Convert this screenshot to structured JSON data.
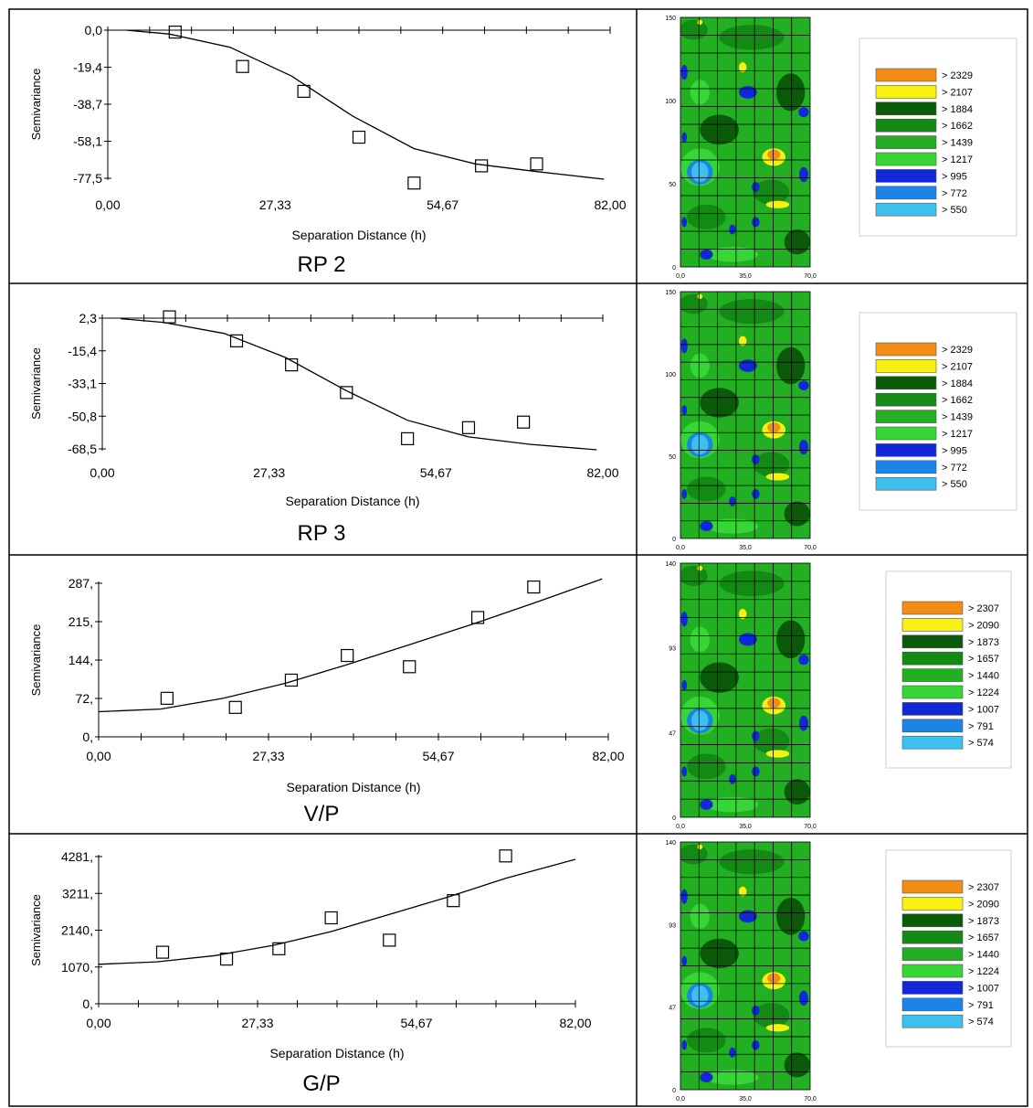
{
  "rows": [
    {
      "caption": "RP 2",
      "variogram": {
        "type": "scatter",
        "xlabel": "Separation Distance (h)",
        "ylabel": "Semivariance",
        "xlim": [
          0,
          82
        ],
        "ylim": [
          -77.5,
          0
        ],
        "x_ticks": [
          "0,00",
          "27,33",
          "54,67",
          "82,00"
        ],
        "y_ticks": [
          "0,0",
          "-19,4",
          "-38,7",
          "-58,1",
          "-77,5"
        ],
        "points": [
          [
            11,
            -1
          ],
          [
            22,
            -19
          ],
          [
            32,
            -32
          ],
          [
            41,
            -56
          ],
          [
            50,
            -80
          ],
          [
            61,
            -71
          ],
          [
            70,
            -70
          ]
        ],
        "model": [
          [
            3,
            0
          ],
          [
            10,
            -2
          ],
          [
            20,
            -9
          ],
          [
            30,
            -24
          ],
          [
            40,
            -45
          ],
          [
            50,
            -62
          ],
          [
            60,
            -70
          ],
          [
            70,
            -74
          ],
          [
            81,
            -78
          ]
        ]
      },
      "map": {
        "y_ticks": [
          "150",
          "100",
          "50",
          "0"
        ],
        "x_ticks": [
          "0,0",
          "35,0",
          "70,0"
        ],
        "legend": [
          {
            "label": "> 2329",
            "color": "#f28c14"
          },
          {
            "label": "> 2107",
            "color": "#f7f012"
          },
          {
            "label": "> 1884",
            "color": "#0a5a0a"
          },
          {
            "label": "> 1662",
            "color": "#138a13"
          },
          {
            "label": "> 1439",
            "color": "#22b022"
          },
          {
            "label": "> 1217",
            "color": "#35d635"
          },
          {
            "label": "> 995",
            "color": "#1028d8"
          },
          {
            "label": "> 772",
            "color": "#1c84e6"
          },
          {
            "label": "> 550",
            "color": "#3cc0ee"
          }
        ]
      }
    },
    {
      "caption": "RP 3",
      "variogram": {
        "type": "scatter",
        "xlabel": "Separation Distance (h)",
        "ylabel": "Semivariance",
        "xlim": [
          0,
          82
        ],
        "ylim": [
          -68.5,
          2.3
        ],
        "x_ticks": [
          "0,00",
          "27,33",
          "54,67",
          "82,00"
        ],
        "y_ticks": [
          "2,3",
          "-15,4",
          "-33,1",
          "-50,8",
          "-68,5"
        ],
        "points": [
          [
            11,
            3
          ],
          [
            22,
            -10
          ],
          [
            31,
            -23
          ],
          [
            40,
            -38
          ],
          [
            50,
            -63
          ],
          [
            60,
            -57
          ],
          [
            69,
            -54
          ]
        ],
        "model": [
          [
            3,
            2
          ],
          [
            10,
            0
          ],
          [
            20,
            -6
          ],
          [
            30,
            -19
          ],
          [
            40,
            -37
          ],
          [
            50,
            -53
          ],
          [
            60,
            -62
          ],
          [
            70,
            -66
          ],
          [
            81,
            -69
          ]
        ]
      },
      "map": {
        "y_ticks": [
          "150",
          "100",
          "50",
          "0"
        ],
        "x_ticks": [
          "0,0",
          "35,0",
          "70,0"
        ],
        "legend": [
          {
            "label": "> 2329",
            "color": "#f28c14"
          },
          {
            "label": "> 2107",
            "color": "#f7f012"
          },
          {
            "label": "> 1884",
            "color": "#0a5a0a"
          },
          {
            "label": "> 1662",
            "color": "#138a13"
          },
          {
            "label": "> 1439",
            "color": "#22b022"
          },
          {
            "label": "> 1217",
            "color": "#35d635"
          },
          {
            "label": "> 995",
            "color": "#1028d8"
          },
          {
            "label": "> 772",
            "color": "#1c84e6"
          },
          {
            "label": "> 550",
            "color": "#3cc0ee"
          }
        ]
      }
    },
    {
      "caption": "V/P",
      "variogram": {
        "type": "scatter",
        "xlabel": "Separation Distance (h)",
        "ylabel": "Semivariance",
        "xlim": [
          0,
          82
        ],
        "ylim": [
          0,
          287
        ],
        "x_ticks": [
          "0,00",
          "27,33",
          "54,67",
          "82,00"
        ],
        "y_ticks": [
          "287,",
          "215,",
          "144,",
          "72,",
          "0,"
        ],
        "points": [
          [
            11,
            72
          ],
          [
            22,
            55
          ],
          [
            31,
            106
          ],
          [
            40,
            152
          ],
          [
            50,
            131
          ],
          [
            61,
            223
          ],
          [
            70,
            280
          ]
        ],
        "model": [
          [
            0,
            47
          ],
          [
            10,
            52
          ],
          [
            20,
            72
          ],
          [
            30,
            100
          ],
          [
            40,
            135
          ],
          [
            50,
            172
          ],
          [
            60,
            210
          ],
          [
            70,
            250
          ],
          [
            81,
            295
          ]
        ]
      },
      "map": {
        "y_ticks": [
          "140",
          "93",
          "47",
          "0"
        ],
        "x_ticks": [
          "0,0",
          "35,0",
          "70,0"
        ],
        "legend": [
          {
            "label": "> 2307",
            "color": "#f28c14"
          },
          {
            "label": "> 2090",
            "color": "#f7f012"
          },
          {
            "label": "> 1873",
            "color": "#0a5a0a"
          },
          {
            "label": "> 1657",
            "color": "#138a13"
          },
          {
            "label": "> 1440",
            "color": "#22b022"
          },
          {
            "label": "> 1224",
            "color": "#35d635"
          },
          {
            "label": "> 1007",
            "color": "#1028d8"
          },
          {
            "label": "> 791",
            "color": "#1c84e6"
          },
          {
            "label": "> 574",
            "color": "#3cc0ee"
          }
        ]
      }
    },
    {
      "caption": "G/P",
      "variogram": {
        "type": "scatter",
        "xlabel": "Separation Distance (h)",
        "ylabel": "Semivariance",
        "xlim": [
          0,
          82
        ],
        "ylim": [
          0,
          4281
        ],
        "x_ticks": [
          "0,00",
          "27,33",
          "54,67",
          "82,00"
        ],
        "y_ticks": [
          "4281,",
          "3211,",
          "2140,",
          "1070,",
          "0,"
        ],
        "points": [
          [
            11,
            1500
          ],
          [
            22,
            1300
          ],
          [
            31,
            1600
          ],
          [
            40,
            2500
          ],
          [
            50,
            1850
          ],
          [
            61,
            3000
          ],
          [
            70,
            4300
          ]
        ],
        "model": [
          [
            0,
            1150
          ],
          [
            10,
            1220
          ],
          [
            20,
            1400
          ],
          [
            30,
            1700
          ],
          [
            40,
            2100
          ],
          [
            50,
            2600
          ],
          [
            60,
            3100
          ],
          [
            70,
            3650
          ],
          [
            82,
            4200
          ]
        ]
      },
      "map": {
        "y_ticks": [
          "140",
          "93",
          "47",
          "0"
        ],
        "x_ticks": [
          "0,0",
          "35,0",
          "70,0"
        ],
        "legend": [
          {
            "label": "> 2307",
            "color": "#f28c14"
          },
          {
            "label": "> 2090",
            "color": "#f7f012"
          },
          {
            "label": "> 1873",
            "color": "#0a5a0a"
          },
          {
            "label": "> 1657",
            "color": "#138a13"
          },
          {
            "label": "> 1440",
            "color": "#22b022"
          },
          {
            "label": "> 1224",
            "color": "#35d635"
          },
          {
            "label": "> 1007",
            "color": "#1028d8"
          },
          {
            "label": "> 791",
            "color": "#1c84e6"
          },
          {
            "label": "> 574",
            "color": "#3cc0ee"
          }
        ]
      }
    }
  ]
}
